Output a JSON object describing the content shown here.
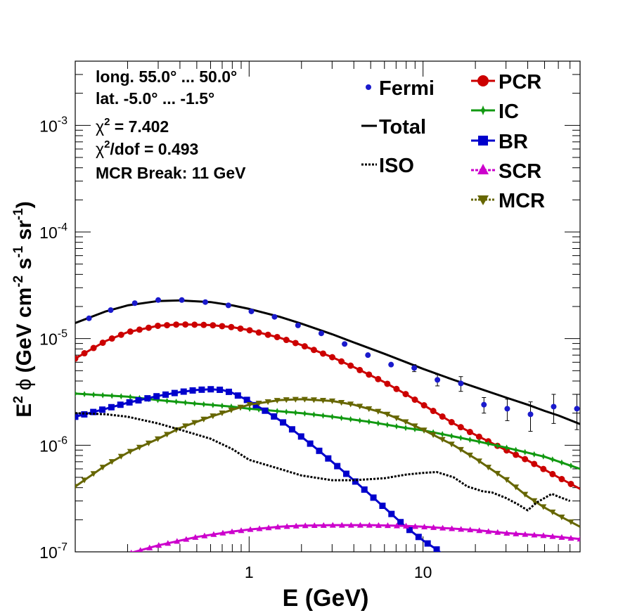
{
  "chart_data": {
    "type": "line",
    "xlabel": "E (GeV)",
    "ylabel_main": "E",
    "ylabel_sup": "2",
    "ylabel_phi": "ϕ",
    "ylabel_units": "(GeV cm",
    "ylabel_cm_exp": "-2",
    "ylabel_s": " s",
    "ylabel_s_exp": "-1",
    "ylabel_sr": " sr",
    "ylabel_sr_exp": "-1",
    "ylabel_close": ")",
    "x_scale": "log",
    "y_scale": "log",
    "xlim": [
      0.1,
      80
    ],
    "ylim": [
      1e-07,
      0.004
    ],
    "x_ticks": [
      {
        "value": 1,
        "label": "1"
      },
      {
        "value": 10,
        "label": "10"
      }
    ],
    "y_ticks": [
      {
        "value": 1e-07,
        "base": "10",
        "exp": "-7"
      },
      {
        "value": 1e-06,
        "base": "10",
        "exp": "-6"
      },
      {
        "value": 1e-05,
        "base": "10",
        "exp": "-5"
      },
      {
        "value": 0.0001,
        "base": "10",
        "exp": "-4"
      },
      {
        "value": 0.001,
        "base": "10",
        "exp": "-3"
      }
    ],
    "annotations": {
      "line1": "long. 55.0° ... 50.0°",
      "line2": "lat. -5.0° ... -1.5°",
      "chi_sym": "χ",
      "chi_exp": "2",
      "chi_val": " = 7.402",
      "chidof_sym": "χ",
      "chidof_exp": "2",
      "chidof_val": "/dof = 0.493",
      "mcr_break": "MCR Break: 11 GeV"
    },
    "legend": {
      "placement": "top-right",
      "entries": [
        {
          "name": "Fermi",
          "style": "points",
          "color": "#1a1acc"
        },
        {
          "name": "Total",
          "style": "solid",
          "color": "#000000"
        },
        {
          "name": "ISO",
          "style": "dotted",
          "color": "#000000"
        },
        {
          "name": "PCR",
          "style": "marker-circle",
          "color": "#cc0000"
        },
        {
          "name": "IC",
          "style": "marker-star",
          "color": "#119911"
        },
        {
          "name": "BR",
          "style": "marker-square",
          "color": "#0000cc"
        },
        {
          "name": "SCR",
          "style": "marker-triangle-up",
          "color": "#cc00cc"
        },
        {
          "name": "MCR",
          "style": "marker-triangle-down",
          "color": "#666600"
        }
      ]
    },
    "fermi_points": {
      "x": [
        0.12,
        0.16,
        0.22,
        0.3,
        0.41,
        0.56,
        0.76,
        1.03,
        1.4,
        1.91,
        2.6,
        3.54,
        4.82,
        6.55,
        8.9,
        12.1,
        16.5,
        22.4,
        30.5,
        41.5,
        56.4,
        76.7
      ],
      "y": [
        1.55e-05,
        1.85e-05,
        2.15e-05,
        2.3e-05,
        2.3e-05,
        2.2e-05,
        2.05e-05,
        1.8e-05,
        1.6e-05,
        1.33e-05,
        1.12e-05,
        8.9e-06,
        7e-06,
        5.7e-06,
        5.3e-06,
        4.1e-06,
        3.8e-06,
        2.4e-06,
        2.2e-06,
        1.95e-06,
        2.3e-06,
        2.2e-06
      ],
      "err": [
        0,
        0,
        0,
        0,
        0,
        0,
        0,
        0,
        0,
        0,
        0,
        0,
        0,
        0,
        4e-07,
        5e-07,
        6e-07,
        4e-07,
        5e-07,
        6e-07,
        7e-07,
        8e-07
      ]
    },
    "series": [
      {
        "name": "Total",
        "color": "#000000",
        "style": "solid",
        "marker": "none",
        "x": [
          0.1,
          0.15,
          0.2,
          0.3,
          0.4,
          0.6,
          0.8,
          1,
          1.5,
          2,
          3,
          4,
          6,
          8,
          10,
          15,
          20,
          30,
          40,
          50,
          60,
          80
        ],
        "y": [
          1.4e-05,
          1.8e-05,
          2.05e-05,
          2.25e-05,
          2.28e-05,
          2.2e-05,
          2.05e-05,
          1.9e-05,
          1.6e-05,
          1.38e-05,
          1.1e-05,
          9.2e-06,
          7.2e-06,
          6e-06,
          5.2e-06,
          4.1e-06,
          3.5e-06,
          2.8e-06,
          2.4e-06,
          2.1e-06,
          1.9e-06,
          1.58e-06
        ]
      },
      {
        "name": "PCR",
        "color": "#cc0000",
        "style": "marker-line",
        "marker": "circle",
        "x": [
          0.1,
          0.15,
          0.2,
          0.3,
          0.4,
          0.6,
          0.8,
          1,
          1.5,
          2,
          3,
          4,
          6,
          8,
          10,
          15,
          20,
          30,
          40,
          50,
          60,
          80
        ],
        "y": [
          6.5e-06,
          9.5e-06,
          1.15e-05,
          1.32e-05,
          1.36e-05,
          1.34e-05,
          1.28e-05,
          1.2e-05,
          1.02e-05,
          8.7e-06,
          6.7e-06,
          5.4e-06,
          3.9e-06,
          3e-06,
          2.4e-06,
          1.6e-06,
          1.25e-06,
          9e-07,
          7.2e-07,
          5.9e-07,
          5e-07,
          3.9e-07
        ]
      },
      {
        "name": "IC",
        "color": "#119911",
        "style": "marker-line",
        "marker": "star",
        "x": [
          0.1,
          0.2,
          0.3,
          0.5,
          0.8,
          1,
          2,
          3,
          5,
          8,
          10,
          20,
          30,
          50,
          80
        ],
        "y": [
          3.05e-06,
          2.85e-06,
          2.65e-06,
          2.45e-06,
          2.3e-06,
          2.2e-06,
          2e-06,
          1.85e-06,
          1.65e-06,
          1.45e-06,
          1.38e-06,
          1.1e-06,
          9.5e-07,
          7.8e-07,
          6e-07
        ]
      },
      {
        "name": "BR",
        "color": "#0000cc",
        "style": "marker-line",
        "marker": "square",
        "x": [
          0.1,
          0.15,
          0.2,
          0.3,
          0.4,
          0.5,
          0.6,
          0.7,
          0.8,
          1,
          1.3,
          1.6,
          2,
          2.5,
          3,
          4,
          5,
          6,
          8,
          10,
          12,
          13.5
        ],
        "y": [
          1.85e-06,
          2.2e-06,
          2.5e-06,
          2.9e-06,
          3.15e-06,
          3.3e-06,
          3.35e-06,
          3.3e-06,
          3.1e-06,
          2.6e-06,
          2e-06,
          1.6e-06,
          1.2e-06,
          9e-07,
          7e-07,
          4.7e-07,
          3.4e-07,
          2.6e-07,
          1.7e-07,
          1.28e-07,
          1.05e-07,
          9e-08
        ]
      },
      {
        "name": "SCR",
        "color": "#cc00cc",
        "style": "marker-line",
        "marker": "triangle-up",
        "x": [
          0.21,
          0.3,
          0.5,
          0.8,
          1,
          1.5,
          2,
          3,
          5,
          8,
          10,
          20,
          30,
          50,
          80
        ],
        "y": [
          9.8e-08,
          1.15e-07,
          1.38e-07,
          1.55e-07,
          1.62e-07,
          1.72e-07,
          1.76e-07,
          1.78e-07,
          1.78e-07,
          1.75e-07,
          1.72e-07,
          1.6e-07,
          1.5e-07,
          1.42e-07,
          1.32e-07
        ]
      },
      {
        "name": "MCR",
        "color": "#666600",
        "style": "marker-line",
        "marker": "triangle-down",
        "x": [
          0.1,
          0.15,
          0.2,
          0.3,
          0.4,
          0.6,
          0.8,
          1,
          1.5,
          2,
          3,
          4,
          6,
          8,
          10,
          15,
          20,
          30,
          40,
          50,
          60,
          80
        ],
        "y": [
          4.1e-07,
          6.5e-07,
          8.5e-07,
          1.15e-06,
          1.45e-06,
          1.85e-06,
          2.15e-06,
          2.4e-06,
          2.65e-06,
          2.7e-06,
          2.6e-06,
          2.4e-06,
          2e-06,
          1.65e-06,
          1.4e-06,
          1e-06,
          7.5e-07,
          4.8e-07,
          3.3e-07,
          2.6e-07,
          2.2e-07,
          1.72e-07
        ]
      },
      {
        "name": "ISO",
        "color": "#000000",
        "style": "dotted",
        "marker": "none",
        "x": [
          0.1,
          0.15,
          0.2,
          0.3,
          0.4,
          0.6,
          0.8,
          1,
          1.5,
          2,
          3,
          4,
          6,
          8,
          10,
          12,
          15,
          18,
          22,
          25,
          30,
          35,
          40,
          45,
          50,
          55,
          60,
          70
        ],
        "y": [
          2e-06,
          1.95e-06,
          1.85e-06,
          1.6e-06,
          1.4e-06,
          1.15e-06,
          9.2e-07,
          7.3e-07,
          6e-07,
          5.2e-07,
          4.7e-07,
          4.7e-07,
          4.9e-07,
          5.3e-07,
          5.5e-07,
          5.6e-07,
          5e-07,
          4.1e-07,
          3.7e-07,
          3.6e-07,
          3.2e-07,
          2.8e-07,
          2.45e-07,
          2.9e-07,
          3.2e-07,
          3.5e-07,
          3.3e-07,
          3e-07
        ]
      }
    ]
  }
}
